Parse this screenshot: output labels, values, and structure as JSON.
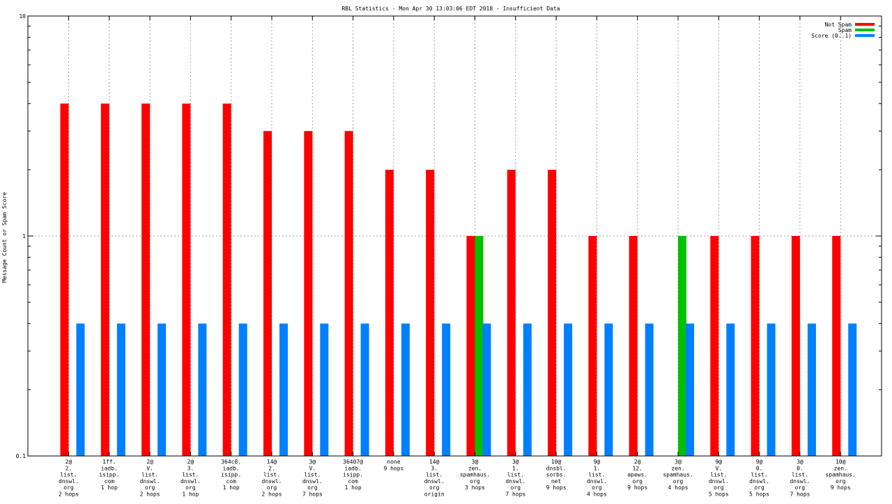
{
  "chart_data": {
    "type": "bar",
    "title": "RBL Statistics - Mon Apr 30 13:03:06 EDT 2018 - Insufficient Data",
    "xlabel": "",
    "ylabel": "Message Count or Spam Score",
    "yscale": "log",
    "ylim": [
      0.1,
      10
    ],
    "yticks": [
      {
        "value": 0.1,
        "label": "0.1"
      },
      {
        "value": 1,
        "label": "1"
      },
      {
        "value": 10,
        "label": "10"
      }
    ],
    "grid": true,
    "legend_position": "top-right",
    "categories": [
      [
        "2@",
        "2.",
        "list.",
        "dnswl.",
        "org",
        "2 hops"
      ],
      [
        "1ff.",
        "iadb.",
        "isipp.",
        "com",
        "1 hop"
      ],
      [
        "2@",
        "V.",
        "list.",
        "dnswl.",
        "org",
        "2 hops"
      ],
      [
        "2@",
        "3.",
        "list.",
        "dnswl.",
        "org",
        "1 hop"
      ],
      [
        "364c8.",
        "iadb.",
        "isipp.",
        "com",
        "1 hop"
      ],
      [
        "14@",
        "2.",
        "list.",
        "dnswl.",
        "org",
        "2 hops"
      ],
      [
        "3@",
        "V.",
        "list.",
        "dnswl.",
        "org",
        "7 hops"
      ],
      [
        "36407@",
        "iadb.",
        "isipp.",
        "com",
        "1 hop"
      ],
      [
        "none",
        "9 hops"
      ],
      [
        "14@",
        "3.",
        "list.",
        "dnswl.",
        "org",
        "origin"
      ],
      [
        "3@",
        "zen.",
        "spamhaus.",
        "org",
        "3 hops"
      ],
      [
        "3@",
        "1.",
        "list.",
        "dnswl.",
        "org",
        "7 hops"
      ],
      [
        "10@",
        "dnsbl.",
        "sorbs.",
        "net",
        "9 hops"
      ],
      [
        "9@",
        "1.",
        "list.",
        "dnswl.",
        "org",
        "4 hops"
      ],
      [
        "2@",
        "12.",
        "apews.",
        "org",
        "9 hops"
      ],
      [
        "3@",
        "zen.",
        "spamhaus.",
        "org",
        "4 hops"
      ],
      [
        "9@",
        "V.",
        "list.",
        "dnswl.",
        "org",
        "5 hops"
      ],
      [
        "9@",
        "0.",
        "list.",
        "dnswl.",
        "org",
        "5 hops"
      ],
      [
        "3@",
        "0.",
        "list.",
        "dnswl.",
        "org",
        "7 hops"
      ],
      [
        "10@",
        "zen.",
        "spamhaus.",
        "org",
        "9 hops"
      ]
    ],
    "series": [
      {
        "name": "Not Spam",
        "color": "#ff0000",
        "values": [
          4,
          4,
          4,
          4,
          4,
          3,
          3,
          3,
          2,
          2,
          1,
          2,
          2,
          1,
          1,
          null,
          1,
          1,
          1,
          1
        ]
      },
      {
        "name": "Spam",
        "color": "#00c000",
        "values": [
          null,
          null,
          null,
          null,
          null,
          null,
          null,
          null,
          null,
          null,
          1,
          null,
          null,
          null,
          null,
          1,
          null,
          null,
          null,
          null
        ]
      },
      {
        "name": "Score (0..1)",
        "color": "#0080ff",
        "values": [
          0.4,
          0.4,
          0.4,
          0.4,
          0.4,
          0.4,
          0.4,
          0.4,
          0.4,
          0.4,
          0.4,
          0.4,
          0.4,
          0.4,
          0.4,
          0.4,
          0.4,
          0.4,
          0.4,
          0.4
        ]
      }
    ]
  }
}
